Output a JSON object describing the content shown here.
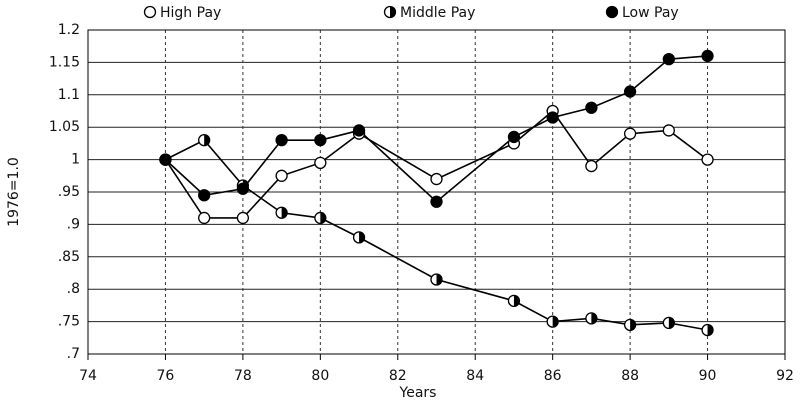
{
  "chart_data": {
    "type": "line",
    "x_label": "Years",
    "y_label": "1976=1.0",
    "x": [
      76,
      77,
      78,
      79,
      80,
      81,
      83,
      85,
      86,
      87,
      88,
      89,
      90
    ],
    "series": [
      {
        "name": "High Pay",
        "color": "#000000",
        "marker": "open",
        "values": [
          1.0,
          0.91,
          0.91,
          0.975,
          0.995,
          1.04,
          0.97,
          1.025,
          1.075,
          0.99,
          1.04,
          1.045,
          1.0
        ]
      },
      {
        "name": "Middle Pay",
        "color": "#000000",
        "marker": "half",
        "values": [
          1.0,
          1.03,
          0.96,
          0.918,
          0.91,
          0.88,
          0.815,
          0.782,
          0.75,
          0.755,
          0.745,
          0.748,
          0.737
        ]
      },
      {
        "name": "Low Pay",
        "color": "#000000",
        "marker": "filled",
        "values": [
          1.0,
          0.945,
          0.955,
          1.03,
          1.03,
          1.045,
          0.935,
          1.035,
          1.065,
          1.08,
          1.105,
          1.155,
          1.16
        ]
      }
    ],
    "xlim": [
      74,
      92
    ],
    "xticks": [
      74,
      76,
      78,
      80,
      82,
      84,
      86,
      88,
      90,
      92
    ],
    "ylim": [
      0.7,
      1.2
    ],
    "yticks": [
      {
        "value": 0.7,
        "label": ".7"
      },
      {
        "value": 0.75,
        "label": ".75"
      },
      {
        "value": 0.8,
        "label": ".8"
      },
      {
        "value": 0.85,
        "label": ".85"
      },
      {
        "value": 0.9,
        "label": ".9"
      },
      {
        "value": 0.95,
        "label": ".95"
      },
      1,
      1.05,
      1.1,
      1.15,
      1.2
    ],
    "grid": true,
    "legend": "top"
  }
}
